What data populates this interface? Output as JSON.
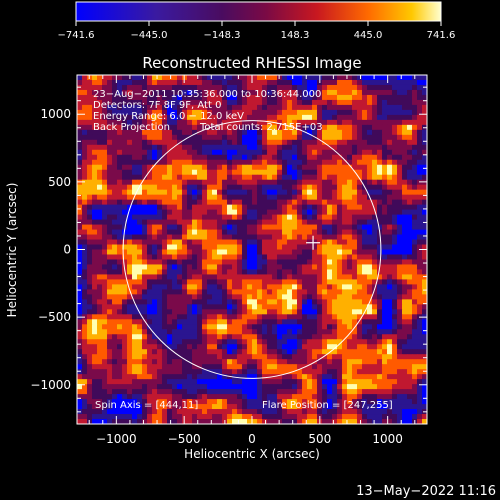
{
  "chart_data": {
    "type": "heatmap",
    "title": "Reconstructed RHESSI Image",
    "xlabel": "Heliocentric X (arcsec)",
    "ylabel": "Heliocentric Y (arcsec)",
    "xlim": [
      -1290,
      1290
    ],
    "ylim": [
      -1290,
      1290
    ],
    "x_ticks": [
      -1000,
      -500,
      0,
      500,
      1000
    ],
    "y_ticks": [
      -1000,
      -500,
      0,
      500,
      1000
    ],
    "colorbar": {
      "min": -741.6,
      "max": 741.6,
      "tick_values": [
        -741.6,
        -445.0,
        -148.3,
        148.3,
        445.0,
        741.6
      ],
      "tick_labels": [
        "−741.6",
        "−445.0",
        "−148.3",
        "148.3",
        "445.0",
        "741.6"
      ]
    },
    "annotations": {
      "time_range": "23−Aug−2011 10:35:36.000 to 10:36:44.000",
      "detectors": "Detectors: 7F 8F 9F, Att 0",
      "energy_range": "Energy Range: 6.0 − 12.0 keV",
      "method": "Back Projection",
      "total_counts": "Total counts: 2.715E+03",
      "spin_axis": "Spin Axis = [444,11]",
      "flare_position": "Flare Position = [247,255]"
    },
    "solar_disk": {
      "center": [
        0,
        0
      ],
      "radius_arcsec": 950
    },
    "marker": {
      "type": "cross",
      "x": 450,
      "y": 50
    },
    "grid": false
  },
  "footer": {
    "date_time": "13−May−2022 11:16"
  },
  "colors": {
    "background": "#000000",
    "foreground": "#ffffff",
    "colormap": [
      "#0000ff",
      "#2a1590",
      "#400a5a",
      "#7a0a4a",
      "#c01830",
      "#ff5a00",
      "#ffb000",
      "#ffffb0"
    ]
  }
}
